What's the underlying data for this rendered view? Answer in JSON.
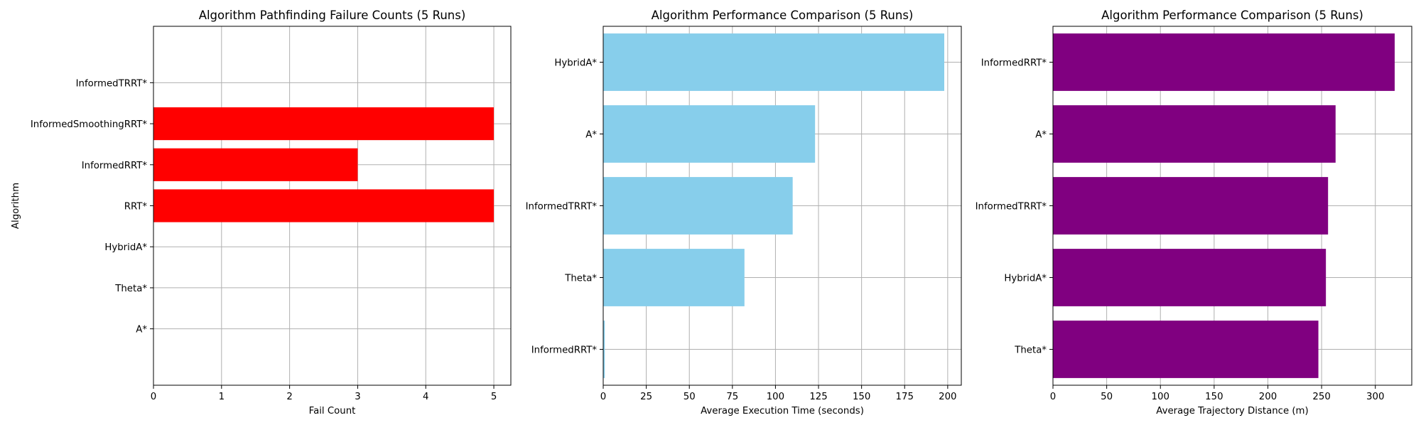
{
  "chart_data": [
    {
      "type": "bar",
      "orientation": "horizontal",
      "title": "Algorithm Pathfinding Failure Counts (5 Runs)",
      "xlabel": "Fail Count",
      "ylabel": "Algorithm",
      "categories": [
        "A*",
        "Theta*",
        "HybridA*",
        "RRT*",
        "InformedRRT*",
        "InformedSmoothingRRT*",
        "InformedTRRT*"
      ],
      "values": [
        0,
        0,
        0,
        5,
        3,
        5,
        0
      ],
      "xlim": [
        0,
        5.25
      ],
      "xticks": [
        0,
        1,
        2,
        3,
        4,
        5
      ],
      "bar_color": "#ff0000",
      "grid": true
    },
    {
      "type": "bar",
      "orientation": "horizontal",
      "title": "Algorithm Performance Comparison (5 Runs)",
      "xlabel": "Average Execution Time (seconds)",
      "ylabel": "",
      "categories": [
        "InformedRRT*",
        "Theta*",
        "InformedTRRT*",
        "A*",
        "HybridA*"
      ],
      "values": [
        0.9,
        82,
        110,
        123,
        198
      ],
      "xlim": [
        0,
        207.9
      ],
      "xticks": [
        0,
        25,
        50,
        75,
        100,
        125,
        150,
        175,
        200
      ],
      "bar_color": "#87ceeb",
      "grid": true
    },
    {
      "type": "bar",
      "orientation": "horizontal",
      "title": "Algorithm Performance Comparison (5 Runs)",
      "xlabel": "Average Trajectory Distance (m)",
      "ylabel": "",
      "categories": [
        "Theta*",
        "HybridA*",
        "InformedTRRT*",
        "A*",
        "InformedRRT*"
      ],
      "values": [
        247,
        254,
        256,
        263,
        318
      ],
      "xlim": [
        0,
        333.9
      ],
      "xticks": [
        0,
        50,
        100,
        150,
        200,
        250,
        300
      ],
      "bar_color": "#800080",
      "grid": true
    }
  ]
}
